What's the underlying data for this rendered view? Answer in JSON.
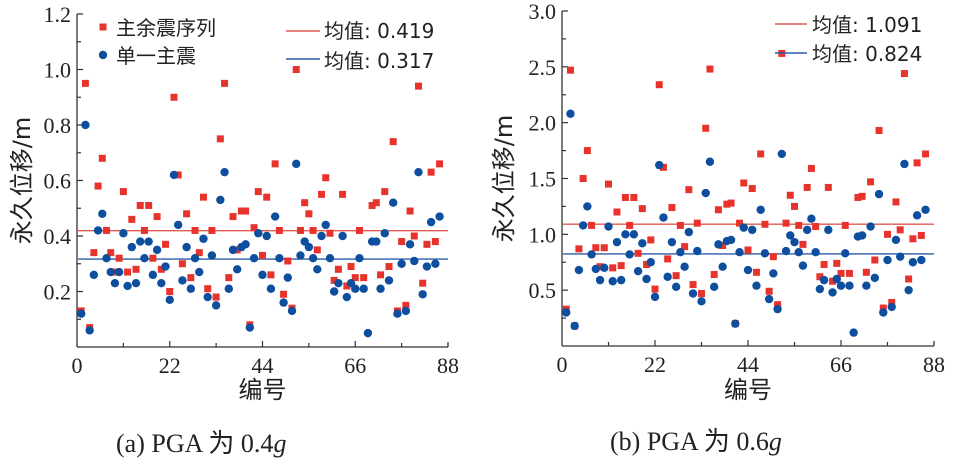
{
  "chart_data": [
    {
      "id": "a",
      "type": "scatter",
      "caption": "(a) PGA 为 0.4g",
      "caption_parts": {
        "prefix": "(a) PGA 为 0.4",
        "italic": "g"
      },
      "xlabel": "编号",
      "ylabel": "永久位移/m",
      "xlim": [
        0,
        88
      ],
      "ylim": [
        0,
        1.2
      ],
      "xticks": [
        0,
        22,
        44,
        66,
        88
      ],
      "xtick_labels": [
        "0",
        "22",
        "44",
        "66",
        "88"
      ],
      "yticks": [
        0.2,
        0.4,
        0.6,
        0.8,
        1.0,
        1.2
      ],
      "ytick_labels": [
        "0.2",
        "0.4",
        "0.6",
        "0.8",
        "1.0",
        "1.2"
      ],
      "legend_placement": "top",
      "series": [
        {
          "name": "主余震序列",
          "marker": "square",
          "color": "#e8332c",
          "x": [
            1,
            2,
            3,
            4,
            5,
            6,
            7,
            8,
            9,
            10,
            11,
            12,
            13,
            14,
            15,
            16,
            17,
            18,
            19,
            20,
            21,
            22,
            23,
            24,
            25,
            26,
            27,
            28,
            29,
            30,
            31,
            32,
            33,
            34,
            35,
            36,
            37,
            38,
            39,
            40,
            41,
            42,
            43,
            44,
            45,
            46,
            47,
            48,
            49,
            50,
            51,
            52,
            53,
            54,
            55,
            56,
            57,
            58,
            59,
            60,
            61,
            62,
            63,
            64,
            65,
            66,
            67,
            68,
            70,
            71,
            72,
            73,
            74,
            75,
            76,
            77,
            78,
            79,
            80,
            81,
            82,
            83,
            84,
            85,
            86
          ],
          "values": [
            0.13,
            0.95,
            0.07,
            0.34,
            0.58,
            0.68,
            0.42,
            0.34,
            0.27,
            0.32,
            0.56,
            0.27,
            0.46,
            0.28,
            0.51,
            0.42,
            0.51,
            0.32,
            0.47,
            0.28,
            0.37,
            0.2,
            0.9,
            0.62,
            0.3,
            0.48,
            0.25,
            0.42,
            0.34,
            0.54,
            0.21,
            0.42,
            0.18,
            0.75,
            0.95,
            0.25,
            0.47,
            0.35,
            0.49,
            0.49,
            0.08,
            0.43,
            0.56,
            0.33,
            0.54,
            0.26,
            0.66,
            0.42,
            0.19,
            0.31,
            0.14,
            1.0,
            0.42,
            0.52,
            0.48,
            0.42,
            0.35,
            0.55,
            0.61,
            0.41,
            0.24,
            0.28,
            0.55,
            0.22,
            0.29,
            0.25,
            0.42,
            0.25,
            0.51,
            0.52,
            0.26,
            0.56,
            0.29,
            0.74,
            0.13,
            0.38,
            0.15,
            0.49,
            0.4,
            0.94,
            0.23,
            0.37,
            0.63,
            0.38,
            0.66
          ]
        },
        {
          "name": "单一主震",
          "marker": "circle",
          "color": "#0d4f9e",
          "x": [
            1,
            2,
            3,
            4,
            5,
            6,
            7,
            8,
            9,
            10,
            11,
            12,
            13,
            14,
            15,
            16,
            17,
            18,
            19,
            20,
            21,
            22,
            23,
            24,
            25,
            26,
            27,
            28,
            29,
            30,
            31,
            32,
            33,
            34,
            35,
            36,
            37,
            38,
            39,
            40,
            41,
            42,
            43,
            44,
            45,
            46,
            47,
            48,
            49,
            50,
            51,
            52,
            53,
            54,
            55,
            56,
            57,
            58,
            59,
            60,
            61,
            62,
            63,
            64,
            65,
            66,
            67,
            68,
            69,
            70,
            71,
            72,
            73,
            74,
            75,
            76,
            77,
            78,
            79,
            80,
            81,
            82,
            83,
            84,
            85,
            86
          ],
          "values": [
            0.12,
            0.8,
            0.06,
            0.26,
            0.42,
            0.48,
            0.32,
            0.27,
            0.23,
            0.27,
            0.41,
            0.22,
            0.36,
            0.23,
            0.38,
            0.32,
            0.38,
            0.26,
            0.35,
            0.23,
            0.29,
            0.17,
            0.62,
            0.44,
            0.24,
            0.36,
            0.21,
            0.32,
            0.27,
            0.39,
            0.18,
            0.33,
            0.15,
            0.53,
            0.63,
            0.21,
            0.35,
            0.28,
            0.36,
            0.37,
            0.07,
            0.32,
            0.41,
            0.26,
            0.4,
            0.21,
            0.47,
            0.32,
            0.16,
            0.25,
            0.13,
            0.66,
            0.33,
            0.38,
            0.36,
            0.32,
            0.28,
            0.4,
            0.44,
            0.32,
            0.2,
            0.23,
            0.4,
            0.18,
            0.23,
            0.21,
            0.32,
            0.21,
            0.05,
            0.38,
            0.38,
            0.21,
            0.41,
            0.24,
            0.52,
            0.12,
            0.3,
            0.13,
            0.37,
            0.31,
            0.63,
            0.19,
            0.29,
            0.45,
            0.3,
            0.47
          ]
        }
      ],
      "mean_lines": [
        {
          "label": "均值: 0.419",
          "value": 0.419,
          "color": "#e05a52"
        },
        {
          "label": "均值: 0.317",
          "value": 0.317,
          "color": "#2a5aa8"
        }
      ]
    },
    {
      "id": "b",
      "type": "scatter",
      "caption": "(b) PGA 为 0.6g",
      "caption_parts": {
        "prefix": "(b) PGA 为 0.6",
        "italic": "g"
      },
      "xlabel": "编号",
      "ylabel": "永久位移/m",
      "xlim": [
        0,
        88
      ],
      "ylim": [
        0,
        3.0
      ],
      "xticks": [
        0,
        22,
        44,
        66,
        88
      ],
      "xtick_labels": [
        "0",
        "22",
        "44",
        "66",
        "88"
      ],
      "yticks": [
        0.5,
        1.0,
        1.5,
        2.0,
        2.5,
        3.0
      ],
      "ytick_labels": [
        "0.5",
        "1.0",
        "1.5",
        "2.0",
        "2.5",
        "3.0"
      ],
      "legend_placement": "top-right",
      "series": [
        {
          "name": "主余震序列",
          "marker": "square",
          "color": "#e8332c",
          "x": [
            1,
            2,
            3,
            4,
            5,
            6,
            7,
            8,
            9,
            10,
            11,
            12,
            13,
            14,
            15,
            16,
            17,
            18,
            19,
            20,
            21,
            22,
            23,
            24,
            25,
            26,
            27,
            28,
            29,
            30,
            31,
            32,
            33,
            34,
            35,
            36,
            37,
            38,
            39,
            40,
            41,
            42,
            43,
            44,
            45,
            46,
            47,
            48,
            49,
            50,
            51,
            52,
            53,
            54,
            55,
            56,
            57,
            58,
            59,
            60,
            61,
            62,
            63,
            64,
            65,
            66,
            67,
            68,
            70,
            71,
            72,
            73,
            74,
            75,
            76,
            77,
            78,
            79,
            80,
            81,
            82,
            83,
            84,
            85,
            86
          ],
          "values": [
            0.33,
            2.47,
            0.18,
            0.87,
            1.5,
            1.75,
            1.08,
            0.88,
            0.71,
            0.88,
            1.45,
            0.7,
            1.2,
            0.72,
            1.33,
            1.08,
            1.33,
            0.83,
            1.23,
            0.73,
            0.95,
            0.51,
            2.34,
            1.6,
            0.78,
            1.24,
            0.63,
            1.08,
            0.89,
            1.4,
            0.55,
            1.1,
            0.47,
            1.95,
            2.48,
            0.64,
            1.22,
            0.9,
            1.27,
            1.28,
            0.2,
            1.1,
            1.46,
            0.86,
            1.41,
            0.66,
            1.72,
            1.09,
            0.49,
            0.8,
            0.37,
            2.62,
            1.1,
            1.35,
            1.25,
            1.08,
            0.91,
            1.42,
            1.59,
            1.07,
            0.62,
            0.73,
            1.42,
            0.58,
            0.74,
            0.65,
            1.08,
            0.65,
            1.33,
            1.34,
            0.66,
            1.47,
            0.77,
            1.93,
            0.34,
            1.0,
            0.39,
            1.29,
            1.04,
            2.44,
            0.6,
            0.96,
            1.64,
            0.99,
            1.72
          ]
        },
        {
          "name": "单一主震",
          "marker": "circle",
          "color": "#0d4f9e",
          "x": [
            1,
            2,
            3,
            4,
            5,
            6,
            7,
            8,
            9,
            10,
            11,
            12,
            13,
            14,
            15,
            16,
            17,
            18,
            19,
            20,
            21,
            22,
            23,
            24,
            25,
            26,
            27,
            28,
            29,
            30,
            31,
            32,
            33,
            34,
            35,
            36,
            37,
            38,
            39,
            40,
            41,
            42,
            43,
            44,
            45,
            46,
            47,
            48,
            49,
            50,
            51,
            52,
            53,
            54,
            55,
            56,
            57,
            58,
            59,
            60,
            61,
            62,
            63,
            64,
            65,
            66,
            67,
            68,
            69,
            70,
            71,
            72,
            73,
            74,
            75,
            76,
            77,
            78,
            79,
            80,
            81,
            82,
            83,
            84,
            85,
            86
          ],
          "values": [
            0.3,
            2.08,
            0.18,
            0.68,
            1.08,
            1.25,
            0.82,
            0.69,
            0.59,
            0.7,
            1.07,
            0.58,
            0.93,
            0.59,
            1.0,
            0.82,
            1.0,
            0.67,
            0.92,
            0.6,
            0.75,
            0.44,
            1.62,
            1.15,
            0.62,
            0.93,
            0.53,
            0.84,
            0.71,
            1.02,
            0.47,
            0.85,
            0.4,
            1.37,
            1.65,
            0.53,
            0.91,
            0.71,
            0.94,
            0.95,
            0.2,
            0.84,
            1.06,
            0.68,
            1.04,
            0.54,
            1.22,
            0.83,
            0.42,
            0.65,
            0.33,
            1.72,
            0.85,
            0.99,
            0.93,
            0.84,
            0.72,
            1.04,
            1.14,
            0.84,
            0.51,
            0.59,
            1.04,
            0.48,
            0.6,
            0.54,
            0.83,
            0.54,
            0.12,
            0.98,
            0.99,
            0.54,
            1.07,
            0.61,
            1.36,
            0.3,
            0.77,
            0.35,
            0.95,
            0.8,
            1.63,
            0.5,
            0.75,
            1.17,
            0.77,
            1.22
          ]
        }
      ],
      "mean_lines": [
        {
          "label": "均值: 1.091",
          "value": 1.091,
          "color": "#e05a52"
        },
        {
          "label": "均值: 0.824",
          "value": 0.824,
          "color": "#2a5aa8"
        }
      ]
    }
  ]
}
